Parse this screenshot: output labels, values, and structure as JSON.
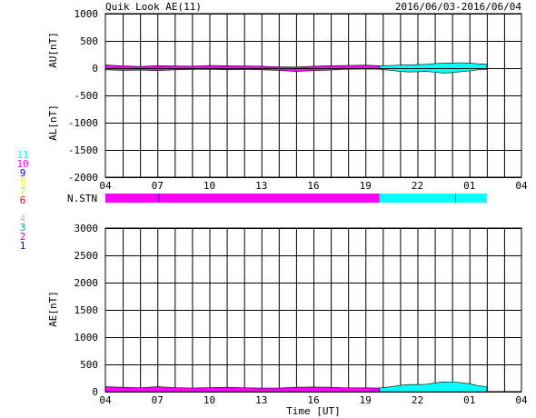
{
  "header": {
    "title": "Quik Look AE(11)",
    "date_range": "2016/06/03-2016/06/04"
  },
  "station_legend": [
    {
      "label": "11",
      "color": "#00ffff"
    },
    {
      "label": "10",
      "color": "#ff00ff"
    },
    {
      "label": "9",
      "color": "#0000ff"
    },
    {
      "label": "8",
      "color": "#ffff00"
    },
    {
      "label": "7",
      "color": "#aaff00"
    },
    {
      "label": "6",
      "color": "#ff0000"
    },
    {
      "label": "5",
      "color": "#ffffff"
    },
    {
      "label": "4",
      "color": "#bbbbbb"
    },
    {
      "label": "3",
      "color": "#00aa88"
    },
    {
      "label": "2",
      "color": "#cc00cc"
    },
    {
      "label": "1",
      "color": "#0000cc"
    }
  ],
  "stn_label": "N.STN",
  "xlabel": "Time [UT]",
  "colors": {
    "station10": "#ff00ff",
    "station11": "#00ffff",
    "grid": "#000000"
  },
  "chart_data": [
    {
      "type": "area",
      "panel": "AU/AL",
      "ylabels": [
        "AU[nT]",
        "AL[nT]"
      ],
      "ylim": [
        -2000,
        1000
      ],
      "yticks": [
        1000,
        500,
        0,
        -500,
        -1000,
        -1500,
        -2000
      ],
      "xlim": [
        4,
        28
      ],
      "xticks": [
        "04",
        "07",
        "10",
        "13",
        "16",
        "19",
        "22",
        "01",
        "04"
      ],
      "grid": true,
      "series": [
        {
          "station": "10",
          "color": "#ff00ff",
          "x": [
            4,
            5,
            6,
            7,
            8,
            9,
            10,
            11,
            12,
            13,
            14,
            15,
            16,
            17,
            18,
            19,
            19.8
          ],
          "upper": [
            60,
            40,
            30,
            45,
            40,
            35,
            50,
            45,
            40,
            35,
            25,
            20,
            35,
            45,
            50,
            55,
            45
          ],
          "lower": [
            -30,
            -40,
            -35,
            -45,
            -30,
            -25,
            -20,
            -30,
            -25,
            -30,
            -40,
            -60,
            -45,
            -35,
            -20,
            -15,
            -20
          ]
        },
        {
          "station": "11",
          "color": "#00ffff",
          "x": [
            19.8,
            20.5,
            21,
            21.5,
            22,
            22.5,
            23,
            23.5,
            24,
            24.5,
            25,
            25.5,
            26
          ],
          "upper": [
            45,
            50,
            55,
            60,
            65,
            70,
            85,
            90,
            95,
            100,
            90,
            80,
            70
          ],
          "lower": [
            -20,
            -40,
            -60,
            -70,
            -65,
            -60,
            -75,
            -90,
            -80,
            -65,
            -50,
            -30,
            -20
          ]
        }
      ]
    },
    {
      "type": "bar",
      "panel": "N.STN",
      "segments": [
        {
          "start": 4,
          "end": 19.8,
          "stations": 10,
          "color": "#ff00ff"
        },
        {
          "start": 19.8,
          "end": 26.0,
          "stations": 11,
          "color": "#00ffff"
        }
      ],
      "markers": [
        {
          "x": 7.1,
          "color": "#0000cc"
        },
        {
          "x": 24.2,
          "color": "#cc00cc"
        }
      ]
    },
    {
      "type": "area",
      "panel": "AE",
      "ylabel": "AE[nT]",
      "ylim": [
        0,
        3000
      ],
      "yticks": [
        3000,
        2500,
        2000,
        1500,
        1000,
        500,
        0
      ],
      "xlim": [
        4,
        28
      ],
      "xticks": [
        "04",
        "07",
        "10",
        "13",
        "16",
        "19",
        "22",
        "01",
        "04"
      ],
      "grid": true,
      "series": [
        {
          "station": "10",
          "color": "#ff00ff",
          "x": [
            4,
            5,
            6,
            7,
            8,
            9,
            10,
            11,
            12,
            13,
            14,
            15,
            16,
            17,
            18,
            19,
            19.8
          ],
          "values": [
            90,
            80,
            70,
            90,
            75,
            65,
            75,
            80,
            70,
            65,
            65,
            80,
            85,
            80,
            70,
            70,
            65
          ]
        },
        {
          "station": "11",
          "color": "#00ffff",
          "x": [
            19.8,
            20.5,
            21,
            21.5,
            22,
            22.5,
            23,
            23.5,
            24,
            24.5,
            25,
            25.5,
            26
          ],
          "values": [
            65,
            90,
            115,
            130,
            130,
            135,
            160,
            180,
            175,
            165,
            145,
            110,
            90
          ]
        }
      ]
    }
  ]
}
